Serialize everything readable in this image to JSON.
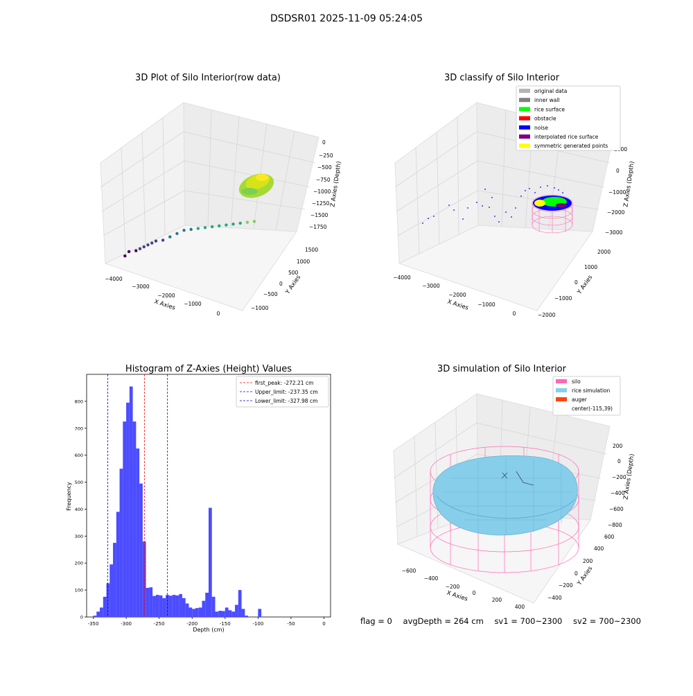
{
  "figure_title": "DSDSR01 2025-11-09 05:24:05",
  "status": {
    "flag": "flag = 0",
    "avg_depth": "avgDepth = 264 cm",
    "sv1": "sv1 = 700~2300",
    "sv2": "sv2 = 700~2300"
  },
  "colors": {
    "hist_bar": "#4c4cff",
    "peak_line": "#ff0000",
    "limit_line": "#0000cc",
    "original_data": "#b4b4b4",
    "inner_wall": "#808080",
    "rice_surface": "#00ff00",
    "obstacle": "#ff0000",
    "noise": "#0000ff",
    "interpolated_rice_surface": "#800080",
    "symmetric_generated_points": "#ffff00",
    "silo": "#ff69b4",
    "rice_simulation": "#87ceeb",
    "auger": "#ff4500"
  },
  "chart_data": [
    {
      "type": "scatter",
      "title": "3D Plot of Silo Interior(row data)",
      "xlabel": "X Axies",
      "ylabel": "Y Axies",
      "zlabel": "Z Axies (Depth)",
      "x_ticks": [
        "−4000",
        "−3000",
        "−2000",
        "−1000",
        "0"
      ],
      "y_ticks": [
        "−1000",
        "−500",
        "0",
        "500",
        "1000",
        "1500"
      ],
      "z_ticks": [
        "0",
        "−250",
        "−500",
        "−750",
        "−1000",
        "−1250",
        "−1500",
        "−1750"
      ],
      "xlim": [
        -4300,
        200
      ],
      "ylim": [
        -1200,
        1700
      ],
      "zlim": [
        -1900,
        100
      ],
      "colormap": "viridis",
      "points": [
        {
          "x": -3900,
          "y": -800,
          "z": -1750
        },
        {
          "x": -3800,
          "y": -750,
          "z": -1650
        },
        {
          "x": -3600,
          "y": -700,
          "z": -1600
        },
        {
          "x": -3500,
          "y": -650,
          "z": -1550
        },
        {
          "x": -3400,
          "y": -600,
          "z": -1500
        },
        {
          "x": -3300,
          "y": -550,
          "z": -1450
        },
        {
          "x": -3200,
          "y": -500,
          "z": -1400
        },
        {
          "x": -3100,
          "y": -450,
          "z": -1350
        },
        {
          "x": -2900,
          "y": -400,
          "z": -1300
        },
        {
          "x": -2700,
          "y": -350,
          "z": -1200
        },
        {
          "x": -2500,
          "y": -300,
          "z": -1100
        },
        {
          "x": -2300,
          "y": -250,
          "z": -1000
        },
        {
          "x": -2100,
          "y": -200,
          "z": -950
        },
        {
          "x": -1900,
          "y": -150,
          "z": -900
        },
        {
          "x": -1700,
          "y": -100,
          "z": -850
        },
        {
          "x": -1500,
          "y": -50,
          "z": -800
        },
        {
          "x": -1300,
          "y": 0,
          "z": -750
        },
        {
          "x": -1100,
          "y": 50,
          "z": -700
        },
        {
          "x": -900,
          "y": 100,
          "z": -650
        },
        {
          "x": -700,
          "y": 150,
          "z": -600
        },
        {
          "x": -500,
          "y": 200,
          "z": -550
        },
        {
          "x": -300,
          "y": 250,
          "z": -500
        }
      ]
    },
    {
      "type": "scatter",
      "title": "3D classify of Silo Interior",
      "xlabel": "X Axies",
      "ylabel": "Y Axies",
      "zlabel": "Z Axies (Depth)",
      "x_ticks": [
        "−4000",
        "−3000",
        "−2000",
        "−1000",
        "0"
      ],
      "y_ticks": [
        "−2000",
        "−1000",
        "0",
        "1000",
        "2000"
      ],
      "z_ticks": [
        "1000",
        "0",
        "−1000",
        "−2000",
        "−3000"
      ],
      "legend_position": "top-right",
      "legend": [
        {
          "label": "original data",
          "color": "#b4b4b4"
        },
        {
          "label": "inner wall",
          "color": "#808080"
        },
        {
          "label": "rice surface",
          "color": "#00ff00"
        },
        {
          "label": "obstacle",
          "color": "#ff0000"
        },
        {
          "label": "noise",
          "color": "#0000ff"
        },
        {
          "label": "interpolated rice surface",
          "color": "#800080"
        },
        {
          "label": "symmetric generated points",
          "color": "#ffff00"
        }
      ]
    },
    {
      "type": "bar",
      "title": "Histogram of Z-Axies (Height) Values",
      "xlabel": "Depth (cm)",
      "ylabel": "Frequency",
      "xlim": [
        -360,
        10
      ],
      "ylim": [
        0,
        900
      ],
      "x_ticks": [
        -350,
        -300,
        -250,
        -200,
        -150,
        -100,
        -50,
        0
      ],
      "y_ticks": [
        0,
        100,
        200,
        300,
        400,
        500,
        600,
        700,
        800
      ],
      "bin_start": -350,
      "bin_width": 5,
      "values": [
        5,
        20,
        35,
        75,
        125,
        195,
        275,
        390,
        550,
        725,
        795,
        855,
        725,
        625,
        495,
        280,
        108,
        110,
        78,
        82,
        80,
        70,
        82,
        79,
        82,
        80,
        85,
        70,
        50,
        35,
        30,
        33,
        35,
        60,
        90,
        405,
        75,
        20,
        23,
        22,
        35,
        25,
        20,
        45,
        100,
        30,
        5,
        0,
        0,
        0,
        30
      ],
      "legend_position": "top-right",
      "lines": [
        {
          "label": "first_peak: -272.21 cm",
          "x": -272.21,
          "color": "#ff0000"
        },
        {
          "label": "Upper_limit: -237.35 cm",
          "x": -237.35,
          "color": "#0000cc"
        },
        {
          "label": "Lower_limit: -327.98 cm",
          "x": -327.98,
          "color": "#0000cc"
        }
      ]
    },
    {
      "type": "scatter",
      "title": "3D simulation of Silo Interior",
      "xlabel": "X Axies",
      "ylabel": "Y Axies",
      "zlabel": "Z Axies (Depth)",
      "x_ticks": [
        "−600",
        "−400",
        "−200",
        "0",
        "200",
        "400"
      ],
      "y_ticks": [
        "−400",
        "−200",
        "0",
        "200",
        "400",
        "600"
      ],
      "z_ticks": [
        "200",
        "0",
        "−200",
        "−400",
        "−600",
        "−800"
      ],
      "legend_position": "top-right",
      "legend": [
        {
          "label": "silo",
          "color": "#ff69b4"
        },
        {
          "label": "rice simulation",
          "color": "#87ceeb"
        },
        {
          "label": "auger",
          "color": "#ff4500"
        },
        {
          "label": "center(-115,39)",
          "color": ""
        }
      ]
    }
  ]
}
